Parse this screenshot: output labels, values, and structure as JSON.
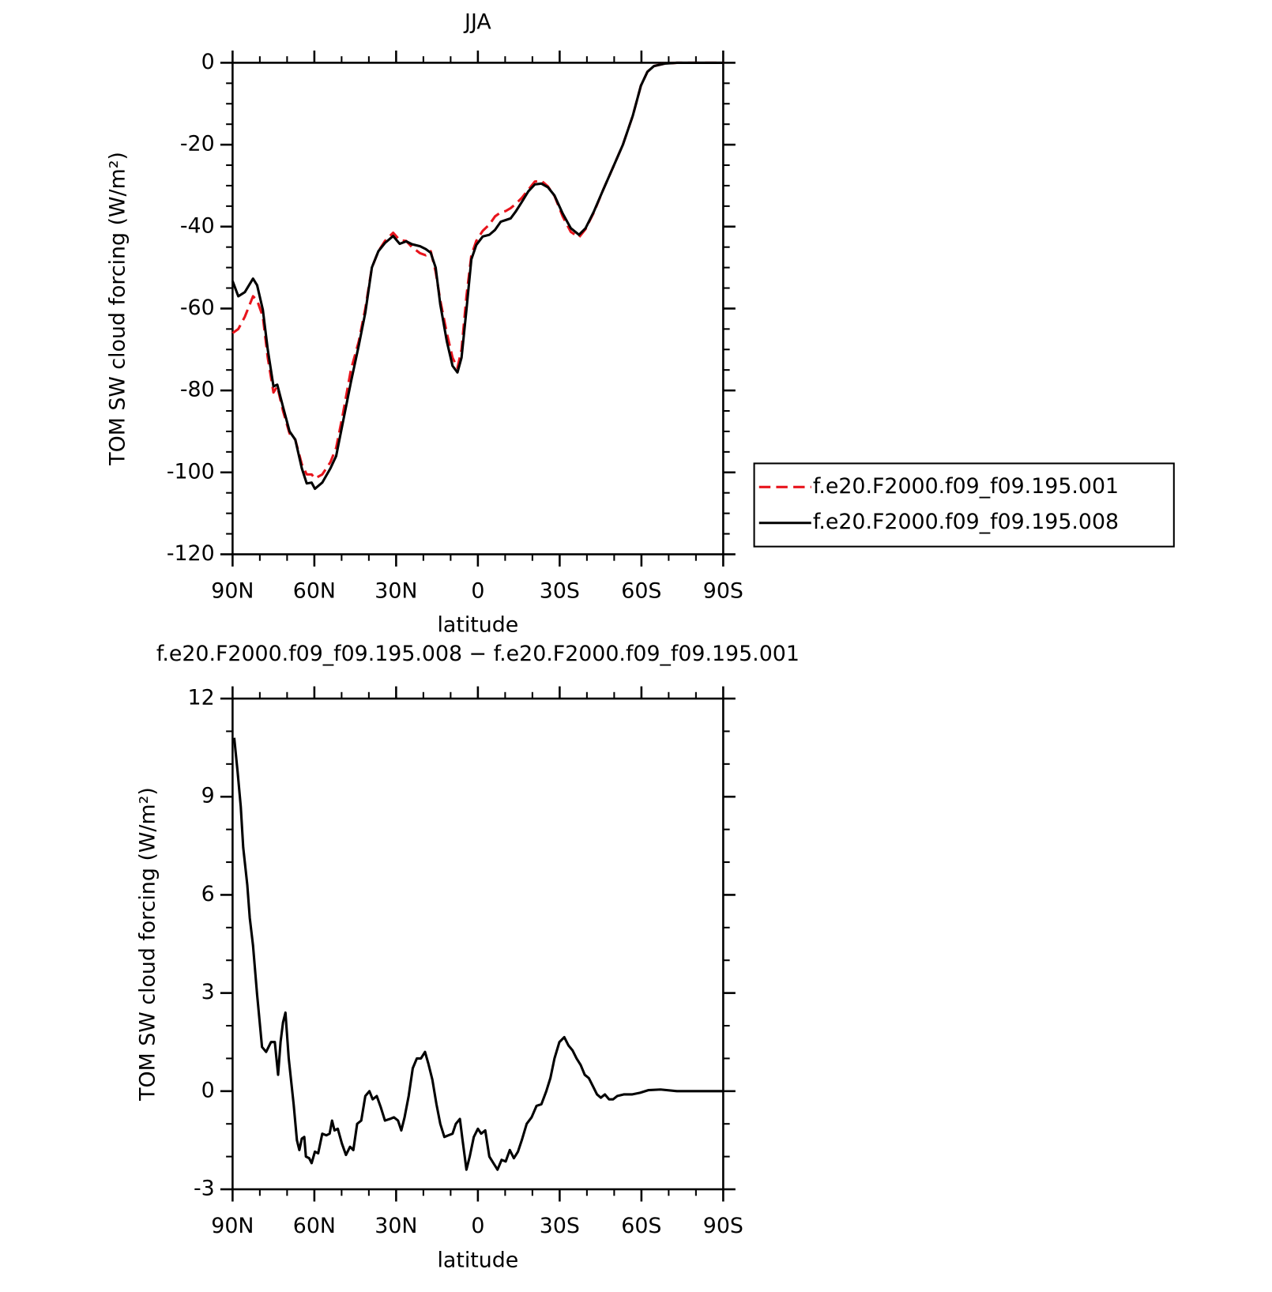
{
  "chart_data": [
    {
      "type": "line",
      "title": "JJA",
      "xlabel": "latitude",
      "ylabel": "TOM SW cloud forcing (W/m²)",
      "x": [
        90,
        87.9,
        85.5,
        82.5,
        81,
        78.9,
        77.1,
        75,
        73.6,
        71.5,
        69.1,
        67,
        64.6,
        62.8,
        61,
        59.8,
        57.1,
        54.1,
        52,
        49.6,
        46.6,
        43.7,
        41.3,
        38.9,
        36.5,
        34.1,
        31.1,
        28.7,
        26.3,
        24.2,
        21.2,
        19.1,
        17.3,
        15.5,
        13.8,
        11.4,
        9.3,
        7.5,
        6,
        4.2,
        2.4,
        0.6,
        -1.8,
        -4.2,
        -6.3,
        -8.4,
        -10.2,
        -12,
        -13.8,
        -16.1,
        -18.5,
        -20.9,
        -23.3,
        -25.7,
        -28.1,
        -31.1,
        -34.1,
        -37.1,
        -39.5,
        -42.5,
        -46.1,
        -49.6,
        -53.2,
        -56.8,
        -59.8,
        -62.2,
        -64.6,
        -68.5,
        -73,
        -90
      ],
      "series": [
        {
          "name": "f.e20.F2000.f09_f09.195.001",
          "color": "#e8141c",
          "dashed": true,
          "values": [
            -66,
            -65,
            -62,
            -57,
            -58,
            -62,
            -72,
            -80.5,
            -79,
            -85,
            -90.5,
            -92,
            -98,
            -100.5,
            -100.5,
            -101.5,
            -100.5,
            -97.5,
            -94,
            -86,
            -75,
            -68,
            -60,
            -50,
            -46,
            -43.5,
            -41.5,
            -43.3,
            -43.5,
            -45,
            -46.5,
            -47,
            -46,
            -51,
            -58,
            -66,
            -72,
            -74.5,
            -70,
            -57,
            -47,
            -43.5,
            -41,
            -39.5,
            -37.5,
            -36.5,
            -36.2,
            -35.5,
            -34.5,
            -33,
            -31,
            -29,
            -28.8,
            -30.2,
            -32.5,
            -37.5,
            -41.3,
            -42.6,
            -40.6,
            -36.6,
            -30.8,
            -25.5,
            -20,
            -13,
            -5.6,
            -2.2,
            -0.8,
            -0.2,
            0,
            0
          ]
        },
        {
          "name": "f.e20.F2000.f09_f09.195.008",
          "color": "#000000",
          "dashed": false,
          "values": [
            -53.3,
            -57,
            -56,
            -52.7,
            -54.3,
            -60.3,
            -70,
            -79,
            -78.6,
            -84,
            -90,
            -92,
            -99,
            -102.7,
            -102.5,
            -104,
            -102.5,
            -99,
            -96,
            -88,
            -78,
            -69,
            -61,
            -50,
            -46,
            -44,
            -42.3,
            -44.2,
            -43.6,
            -44.3,
            -44.8,
            -45.5,
            -46.4,
            -50,
            -59,
            -68,
            -74,
            -75.6,
            -72,
            -60.3,
            -48,
            -44.5,
            -42.4,
            -42,
            -40.8,
            -38.8,
            -38.4,
            -38,
            -36.4,
            -34,
            -31.4,
            -29.7,
            -29.5,
            -30.4,
            -32.4,
            -36.8,
            -40.4,
            -42,
            -40.4,
            -36.4,
            -30.8,
            -25.5,
            -20,
            -13,
            -5.6,
            -2.2,
            -0.8,
            -0.2,
            0,
            0
          ]
        }
      ],
      "xlim": [
        90,
        -90
      ],
      "xticks": [
        {
          "value": 90,
          "label": "90N"
        },
        {
          "value": 60,
          "label": "60N"
        },
        {
          "value": 30,
          "label": "30N"
        },
        0,
        {
          "value": -30,
          "label": "30S"
        },
        {
          "value": -60,
          "label": "60S"
        },
        {
          "value": -90,
          "label": "90S"
        }
      ],
      "ylim": [
        -120,
        0
      ],
      "yticks": [
        -120,
        -100,
        -80,
        -60,
        -40,
        -20,
        0
      ],
      "legend": "right",
      "grid": false
    },
    {
      "type": "line",
      "title": "f.e20.F2000.f09_f09.195.008 − f.e20.F2000.f09_f09.195.001",
      "xlabel": "latitude",
      "ylabel": "TOM SW cloud forcing (W/m²)",
      "x": [
        89.4,
        88.2,
        87.0,
        86.1,
        84.6,
        83.7,
        82.5,
        81.0,
        79.2,
        77.7,
        75.9,
        74.5,
        73.3,
        72.4,
        71.5,
        70.6,
        69.4,
        67.6,
        66.4,
        65.5,
        64.6,
        63.7,
        63.1,
        61.9,
        61.0,
        59.8,
        58.6,
        57.1,
        55.6,
        54.4,
        53.5,
        52.6,
        51.4,
        49.9,
        48.4,
        46.9,
        45.7,
        44.3,
        42.8,
        41.3,
        39.8,
        38.6,
        37.1,
        35.6,
        34.1,
        32.3,
        30.8,
        29.3,
        28.1,
        26.9,
        25.4,
        23.9,
        22.4,
        20.9,
        19.4,
        18.2,
        16.7,
        15.2,
        13.8,
        12.3,
        10.8,
        9.3,
        8.1,
        6.6,
        5.7,
        4.2,
        3.0,
        1.5,
        0.0,
        -1.2,
        -2.7,
        -4.2,
        -5.7,
        -7.2,
        -8.7,
        -10.2,
        -11.7,
        -13.2,
        -14.7,
        -16.1,
        -17.9,
        -19.7,
        -21.5,
        -23.3,
        -25.1,
        -26.6,
        -28.1,
        -29.9,
        -31.7,
        -33.2,
        -34.7,
        -36.2,
        -37.7,
        -39.2,
        -40.7,
        -42.2,
        -43.7,
        -45.1,
        -46.6,
        -48.1,
        -49.6,
        -51.1,
        -53.5,
        -56.5,
        -59.5,
        -62.5,
        -67.0,
        -73.0,
        -90
      ],
      "series": [
        {
          "color": "#000000",
          "dashed": false,
          "values": [
            10.8,
            9.8,
            8.7,
            7.45,
            6.3,
            5.3,
            4.45,
            2.95,
            1.35,
            1.2,
            1.5,
            1.5,
            0.5,
            1.5,
            2.1,
            2.4,
            1,
            -0.4,
            -1.5,
            -1.8,
            -1.45,
            -1.4,
            -2,
            -2.05,
            -2.2,
            -1.85,
            -1.9,
            -1.3,
            -1.35,
            -1.3,
            -0.9,
            -1.2,
            -1.15,
            -1.6,
            -1.95,
            -1.7,
            -1.8,
            -1,
            -0.9,
            -0.15,
            0,
            -0.25,
            -0.15,
            -0.5,
            -0.9,
            -0.85,
            -0.8,
            -0.9,
            -1.2,
            -0.8,
            -0.15,
            0.7,
            1,
            1,
            1.2,
            0.85,
            0.35,
            -0.4,
            -1,
            -1.4,
            -1.35,
            -1.3,
            -1,
            -0.85,
            -1.45,
            -2.4,
            -2,
            -1.4,
            -1.15,
            -1.3,
            -1.2,
            -2,
            -2.2,
            -2.4,
            -2.1,
            -2.15,
            -1.8,
            -2.05,
            -1.85,
            -1.5,
            -1,
            -0.8,
            -0.45,
            -0.4,
            0,
            0.4,
            1,
            1.5,
            1.65,
            1.4,
            1.25,
            1,
            0.8,
            0.5,
            0.4,
            0.15,
            -0.1,
            -0.2,
            -0.1,
            -0.25,
            -0.25,
            -0.15,
            -0.1,
            -0.1,
            -0.05,
            0.03,
            0.05,
            0,
            0
          ]
        }
      ],
      "xlim": [
        90,
        -90
      ],
      "xticks": [
        {
          "value": 90,
          "label": "90N"
        },
        {
          "value": 60,
          "label": "60N"
        },
        {
          "value": 30,
          "label": "30N"
        },
        0,
        {
          "value": -30,
          "label": "30S"
        },
        {
          "value": -60,
          "label": "60S"
        },
        {
          "value": -90,
          "label": "90S"
        }
      ],
      "ylim": [
        -3,
        12
      ],
      "yticks": [
        -3,
        0,
        3,
        6,
        9,
        12
      ],
      "grid": false
    }
  ]
}
